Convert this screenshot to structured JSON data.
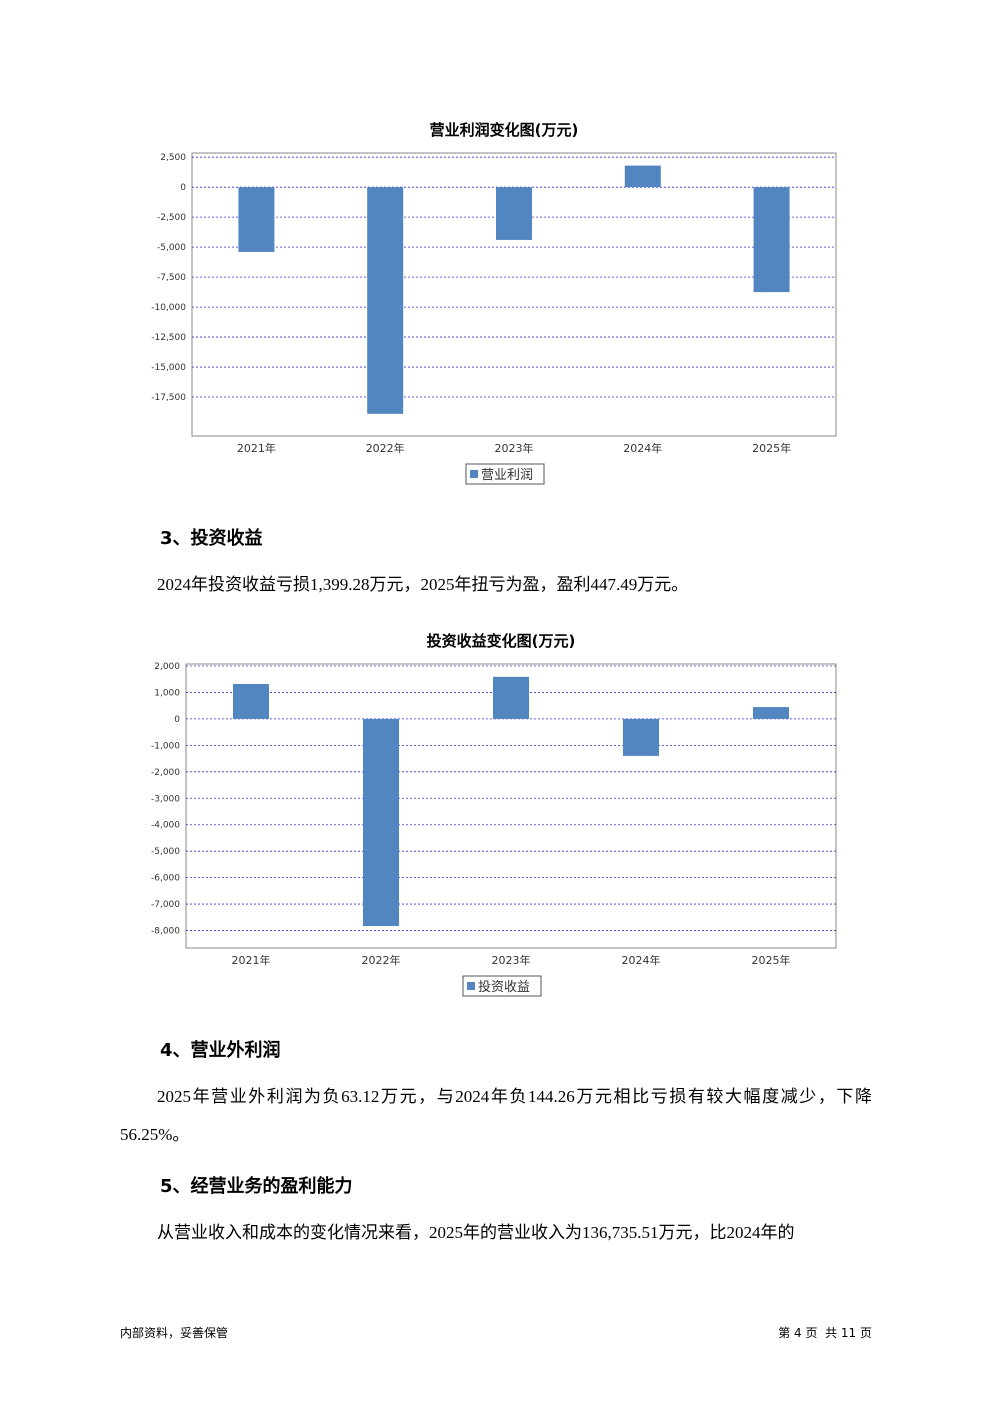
{
  "chart_data": [
    {
      "type": "bar",
      "title": "营业利润变化图(万元)",
      "categories": [
        "2021年",
        "2022年",
        "2023年",
        "2024年",
        "2025年"
      ],
      "series": [
        {
          "name": "营业利润",
          "color": "#5286c0",
          "values": [
            -5400,
            -18900,
            -4400,
            1800,
            -8750
          ]
        }
      ],
      "ylim": [
        -20750,
        2850
      ],
      "yticks": [
        {
          "value": 2500,
          "label": "2,500"
        },
        0,
        {
          "value": -2500,
          "label": "-2,500"
        },
        {
          "value": -5000,
          "label": "-5,000"
        },
        {
          "value": -7500,
          "label": "-7,500"
        },
        {
          "value": -10000,
          "label": "-10,000"
        },
        {
          "value": -12500,
          "label": "-12,500"
        },
        {
          "value": -15000,
          "label": "-15,000"
        },
        {
          "value": -17500,
          "label": "-17,500"
        }
      ],
      "grid": true
    },
    {
      "type": "bar",
      "title": "投资收益变化图(万元)",
      "categories": [
        "2021年",
        "2022年",
        "2023年",
        "2024年",
        "2025年"
      ],
      "series": [
        {
          "name": "投资收益",
          "color": "#5286c0",
          "values": [
            1320,
            -7830,
            1590,
            -1399.28,
            447.49
          ]
        }
      ],
      "ylim": [
        -8660,
        2075
      ],
      "yticks": [
        {
          "value": 2000,
          "label": "2,000"
        },
        {
          "value": 1000,
          "label": "1,000"
        },
        0,
        {
          "value": -1000,
          "label": "-1,000"
        },
        {
          "value": -2000,
          "label": "-2,000"
        },
        {
          "value": -3000,
          "label": "-3,000"
        },
        {
          "value": -4000,
          "label": "-4,000"
        },
        {
          "value": -5000,
          "label": "-5,000"
        },
        {
          "value": -6000,
          "label": "-6,000"
        },
        {
          "value": -7000,
          "label": "-7,000"
        },
        {
          "value": -8000,
          "label": "-8,000"
        }
      ],
      "grid": true
    }
  ],
  "sections": [
    {
      "heading": "3、投资收益",
      "paragraph": "2024年投资收益亏损1,399.28万元，2025年扭亏为盈，盈利447.49万元。"
    },
    {
      "heading": "4、营业外利润",
      "paragraph": "2025年营业外利润为负63.12万元，与2024年负144.26万元相比亏损有较大幅度减少，下降56.25%。"
    },
    {
      "heading": "5、经营业务的盈利能力",
      "paragraph": "从营业收入和成本的变化情况来看，2025年的营业收入为136,735.51万元，比2024年的"
    }
  ],
  "footer": {
    "left": "内部资料，妥善保管",
    "right": "第 4 页  共 11 页"
  }
}
